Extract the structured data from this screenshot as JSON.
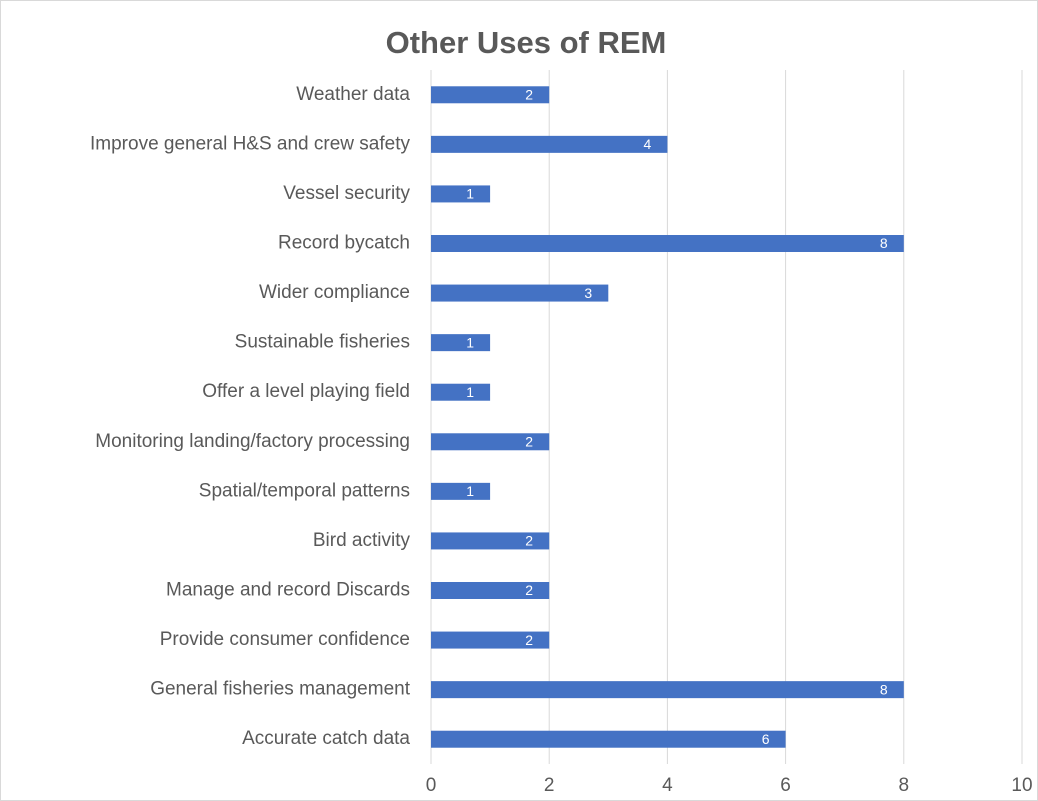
{
  "chart_data": {
    "type": "bar",
    "orientation": "horizontal",
    "title": "Other Uses of REM",
    "categories": [
      "Weather data",
      "Improve general H&S and crew safety",
      "Vessel security",
      "Record bycatch",
      "Wider compliance",
      "Sustainable fisheries",
      "Offer a level playing field",
      "Monitoring landing/factory processing",
      "Spatial/temporal patterns",
      "Bird activity",
      "Manage and record Discards",
      "Provide consumer confidence",
      "General fisheries management",
      "Accurate catch data"
    ],
    "values": [
      2,
      4,
      1,
      8,
      3,
      1,
      1,
      2,
      1,
      2,
      2,
      2,
      8,
      6
    ],
    "color": "#4472c4",
    "xlim": [
      0,
      10
    ],
    "xticks": [
      0,
      2,
      4,
      6,
      8,
      10
    ],
    "grid": true
  }
}
